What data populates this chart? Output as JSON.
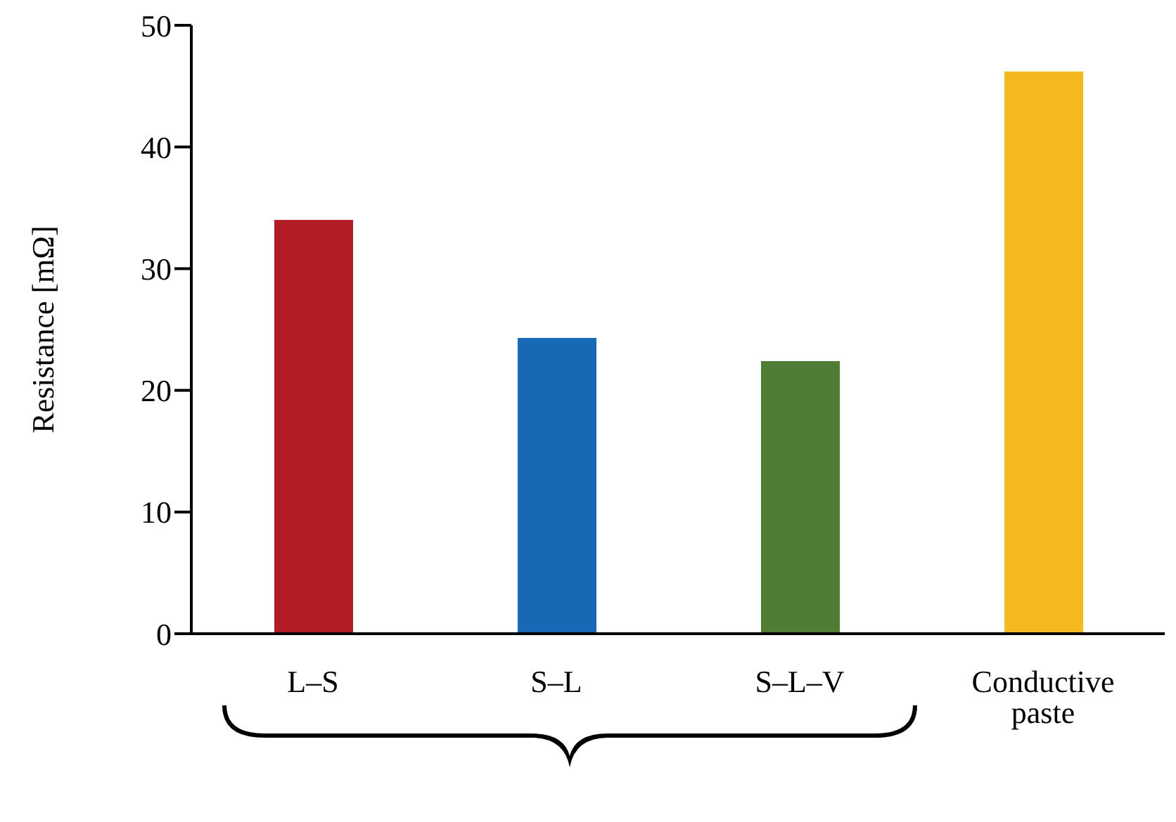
{
  "chart_data": {
    "type": "bar",
    "ylabel": "Resistance [mΩ]",
    "categories": [
      "L–S",
      "S–L",
      "S–L–V",
      "Conductive paste"
    ],
    "values": [
      34.0,
      24.3,
      22.4,
      46.2
    ],
    "colors": [
      "#b31c24",
      "#1769b5",
      "#4f7d35",
      "#f3b91f"
    ],
    "ylim": [
      0,
      50
    ],
    "yticks": [
      0,
      10,
      20,
      30,
      40,
      50
    ],
    "grid": false,
    "legend": false
  }
}
